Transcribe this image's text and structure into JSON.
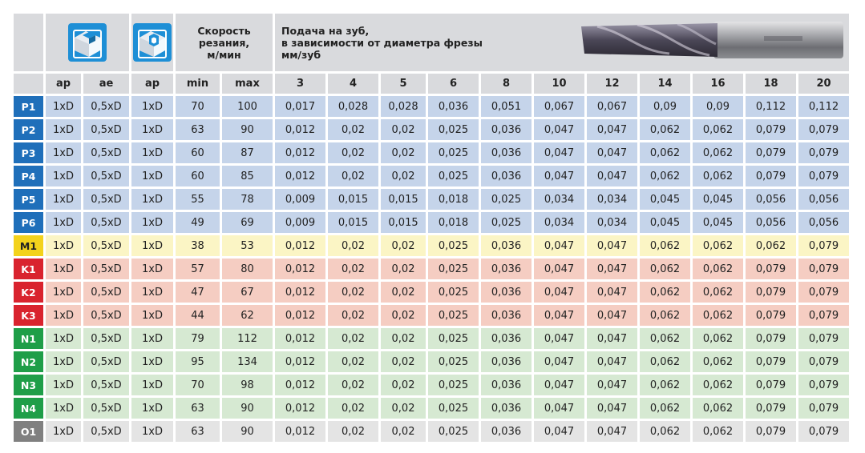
{
  "header": {
    "speed_title": [
      "Скорость",
      "резания,",
      "м/мин"
    ],
    "feed_title": [
      "Подача на зуб,",
      "в зависимости от диаметра фрезы",
      "мм/зуб"
    ],
    "icons": [
      "slot-milling-icon",
      "side-milling-icon"
    ],
    "sub": [
      "ap",
      "ae",
      "ap",
      "min",
      "max"
    ],
    "diameters": [
      "3",
      "4",
      "5",
      "6",
      "8",
      "10",
      "12",
      "14",
      "16",
      "18",
      "20"
    ]
  },
  "groups": {
    "P": {
      "code_color": "#1f6fba",
      "row_color": "#c5d4ea"
    },
    "M": {
      "code_color": "#f3d21c",
      "row_color": "#fbf5c5"
    },
    "K": {
      "code_color": "#d9232e",
      "row_color": "#f5cdc2"
    },
    "N": {
      "code_color": "#1f9e48",
      "row_color": "#d6e9d2"
    },
    "O": {
      "code_color": "#808080",
      "row_color": "#e4e4e4"
    }
  },
  "rows": [
    {
      "code": "P1",
      "group": "P",
      "ap": "1xD",
      "ae": "0,5xD",
      "ap2": "1xD",
      "min": "70",
      "max": "100",
      "f": [
        "0,017",
        "0,028",
        "0,028",
        "0,036",
        "0,051",
        "0,067",
        "0,067",
        "0,09",
        "0,09",
        "0,112",
        "0,112"
      ]
    },
    {
      "code": "P2",
      "group": "P",
      "ap": "1xD",
      "ae": "0,5xD",
      "ap2": "1xD",
      "min": "63",
      "max": "90",
      "f": [
        "0,012",
        "0,02",
        "0,02",
        "0,025",
        "0,036",
        "0,047",
        "0,047",
        "0,062",
        "0,062",
        "0,079",
        "0,079"
      ]
    },
    {
      "code": "P3",
      "group": "P",
      "ap": "1xD",
      "ae": "0,5xD",
      "ap2": "1xD",
      "min": "60",
      "max": "87",
      "f": [
        "0,012",
        "0,02",
        "0,02",
        "0,025",
        "0,036",
        "0,047",
        "0,047",
        "0,062",
        "0,062",
        "0,079",
        "0,079"
      ]
    },
    {
      "code": "P4",
      "group": "P",
      "ap": "1xD",
      "ae": "0,5xD",
      "ap2": "1xD",
      "min": "60",
      "max": "85",
      "f": [
        "0,012",
        "0,02",
        "0,02",
        "0,025",
        "0,036",
        "0,047",
        "0,047",
        "0,062",
        "0,062",
        "0,079",
        "0,079"
      ]
    },
    {
      "code": "P5",
      "group": "P",
      "ap": "1xD",
      "ae": "0,5xD",
      "ap2": "1xD",
      "min": "55",
      "max": "78",
      "f": [
        "0,009",
        "0,015",
        "0,015",
        "0,018",
        "0,025",
        "0,034",
        "0,034",
        "0,045",
        "0,045",
        "0,056",
        "0,056"
      ]
    },
    {
      "code": "P6",
      "group": "P",
      "ap": "1xD",
      "ae": "0,5xD",
      "ap2": "1xD",
      "min": "49",
      "max": "69",
      "f": [
        "0,009",
        "0,015",
        "0,015",
        "0,018",
        "0,025",
        "0,034",
        "0,034",
        "0,045",
        "0,045",
        "0,056",
        "0,056"
      ]
    },
    {
      "code": "M1",
      "group": "M",
      "ap": "1xD",
      "ae": "0,5xD",
      "ap2": "1xD",
      "min": "38",
      "max": "53",
      "f": [
        "0,012",
        "0,02",
        "0,02",
        "0,025",
        "0,036",
        "0,047",
        "0,047",
        "0,062",
        "0,062",
        "0,062",
        "0,079"
      ]
    },
    {
      "code": "K1",
      "group": "K",
      "ap": "1xD",
      "ae": "0,5xD",
      "ap2": "1xD",
      "min": "57",
      "max": "80",
      "f": [
        "0,012",
        "0,02",
        "0,02",
        "0,025",
        "0,036",
        "0,047",
        "0,047",
        "0,062",
        "0,062",
        "0,079",
        "0,079"
      ]
    },
    {
      "code": "K2",
      "group": "K",
      "ap": "1xD",
      "ae": "0,5xD",
      "ap2": "1xD",
      "min": "47",
      "max": "67",
      "f": [
        "0,012",
        "0,02",
        "0,02",
        "0,025",
        "0,036",
        "0,047",
        "0,047",
        "0,062",
        "0,062",
        "0,079",
        "0,079"
      ]
    },
    {
      "code": "K3",
      "group": "K",
      "ap": "1xD",
      "ae": "0,5xD",
      "ap2": "1xD",
      "min": "44",
      "max": "62",
      "f": [
        "0,012",
        "0,02",
        "0,02",
        "0,025",
        "0,036",
        "0,047",
        "0,047",
        "0,062",
        "0,062",
        "0,079",
        "0,079"
      ]
    },
    {
      "code": "N1",
      "group": "N",
      "ap": "1xD",
      "ae": "0,5xD",
      "ap2": "1xD",
      "min": "79",
      "max": "112",
      "f": [
        "0,012",
        "0,02",
        "0,02",
        "0,025",
        "0,036",
        "0,047",
        "0,047",
        "0,062",
        "0,062",
        "0,079",
        "0,079"
      ]
    },
    {
      "code": "N2",
      "group": "N",
      "ap": "1xD",
      "ae": "0,5xD",
      "ap2": "1xD",
      "min": "95",
      "max": "134",
      "f": [
        "0,012",
        "0,02",
        "0,02",
        "0,025",
        "0,036",
        "0,047",
        "0,047",
        "0,062",
        "0,062",
        "0,079",
        "0,079"
      ]
    },
    {
      "code": "N3",
      "group": "N",
      "ap": "1xD",
      "ae": "0,5xD",
      "ap2": "1xD",
      "min": "70",
      "max": "98",
      "f": [
        "0,012",
        "0,02",
        "0,02",
        "0,025",
        "0,036",
        "0,047",
        "0,047",
        "0,062",
        "0,062",
        "0,079",
        "0,079"
      ]
    },
    {
      "code": "N4",
      "group": "N",
      "ap": "1xD",
      "ae": "0,5xD",
      "ap2": "1xD",
      "min": "63",
      "max": "90",
      "f": [
        "0,012",
        "0,02",
        "0,02",
        "0,025",
        "0,036",
        "0,047",
        "0,047",
        "0,062",
        "0,062",
        "0,079",
        "0,079"
      ]
    },
    {
      "code": "O1",
      "group": "O",
      "ap": "1xD",
      "ae": "0,5xD",
      "ap2": "1xD",
      "min": "63",
      "max": "90",
      "f": [
        "0,012",
        "0,02",
        "0,02",
        "0,025",
        "0,036",
        "0,047",
        "0,047",
        "0,062",
        "0,062",
        "0,079",
        "0,079"
      ]
    }
  ]
}
